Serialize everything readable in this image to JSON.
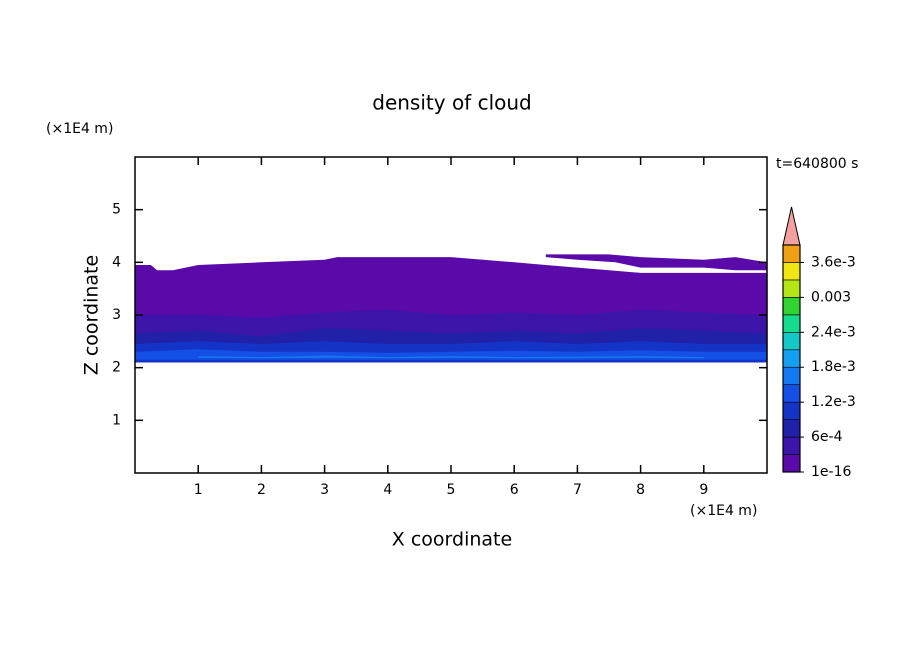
{
  "chart_data": {
    "type": "contour",
    "title": "density of cloud",
    "time_label": "t=640800 s",
    "xlabel": "X coordinate",
    "ylabel": "Z coordinate",
    "x_unit": "(×1E4 m)",
    "y_unit": "(×1E4 m)",
    "xlim": [
      0,
      10
    ],
    "ylim": [
      0,
      6
    ],
    "xticks": [
      1,
      2,
      3,
      4,
      5,
      6,
      7,
      8,
      9
    ],
    "yticks": [
      1,
      2,
      3,
      4,
      5
    ],
    "levels": [
      1e-16,
      0.0003,
      0.0006,
      0.0009,
      0.0012,
      0.0015,
      0.0018,
      0.0021,
      0.0024,
      0.0027,
      0.003,
      0.0033,
      0.0036,
      0.0039
    ],
    "level_colors": [
      "#5a0aa8",
      "#3c14aa",
      "#2020a8",
      "#1434c8",
      "#1450e6",
      "#1478f0",
      "#14a0f0",
      "#14c8c8",
      "#14dc8c",
      "#32d232",
      "#b4e614",
      "#f0e614",
      "#f0a014"
    ],
    "extend_color": "#f4a0a0",
    "colorbar_ticks": [
      {
        "value": 1e-16,
        "label": "1e-16"
      },
      {
        "value": 0.0006,
        "label": "6e-4"
      },
      {
        "value": 0.0012,
        "label": "1.2e-3"
      },
      {
        "value": 0.0018,
        "label": "1.8e-3"
      },
      {
        "value": 0.0024,
        "label": "2.4e-3"
      },
      0.003,
      {
        "value": 0.0036,
        "label": "3.6e-3"
      }
    ],
    "regions": [
      {
        "level": 0,
        "x": [
          0,
          0.25,
          0.35,
          0.6,
          1,
          2,
          3,
          3.2,
          4,
          5,
          6,
          6.5,
          7,
          7.5,
          8,
          9,
          10,
          10,
          0
        ],
        "z": [
          3.95,
          3.95,
          3.85,
          3.85,
          3.95,
          4.0,
          4.05,
          4.1,
          4.1,
          4.1,
          4.0,
          3.95,
          3.9,
          3.85,
          3.8,
          3.8,
          3.8,
          2.1,
          2.1
        ]
      },
      {
        "level": 0,
        "x": [
          6.5,
          7.5,
          8,
          9,
          9.5,
          10,
          10,
          9.5,
          9,
          8,
          7.6,
          7,
          6.5
        ],
        "z": [
          4.15,
          4.15,
          4.1,
          4.05,
          4.1,
          4.0,
          3.85,
          3.85,
          3.9,
          3.9,
          4.0,
          4.05,
          4.1
        ]
      },
      {
        "level": 1,
        "x": [
          0,
          1,
          2,
          3,
          4,
          5,
          6,
          7,
          8,
          9,
          10,
          10,
          0
        ],
        "z": [
          3.0,
          3.0,
          2.95,
          3.05,
          3.1,
          3.0,
          3.05,
          3.0,
          3.1,
          3.05,
          3.0,
          2.1,
          2.1
        ]
      },
      {
        "level": 2,
        "x": [
          0,
          1,
          2,
          3,
          4,
          5,
          6,
          7,
          8,
          9,
          10,
          10,
          0
        ],
        "z": [
          2.65,
          2.7,
          2.6,
          2.75,
          2.7,
          2.65,
          2.7,
          2.65,
          2.75,
          2.7,
          2.65,
          2.1,
          2.1
        ]
      },
      {
        "level": 3,
        "x": [
          0,
          1,
          2,
          3,
          4,
          5,
          6,
          7,
          8,
          9,
          10,
          10,
          0
        ],
        "z": [
          2.45,
          2.5,
          2.45,
          2.5,
          2.45,
          2.45,
          2.5,
          2.45,
          2.5,
          2.45,
          2.45,
          2.1,
          2.1
        ]
      },
      {
        "level": 4,
        "x": [
          0,
          1,
          2,
          3,
          4,
          5,
          6,
          7,
          8,
          9,
          10,
          10,
          0
        ],
        "z": [
          2.3,
          2.35,
          2.3,
          2.3,
          2.28,
          2.3,
          2.32,
          2.3,
          2.33,
          2.3,
          2.3,
          2.15,
          2.15
        ]
      },
      {
        "level": 5,
        "x": [
          1,
          2,
          3,
          4,
          5,
          6,
          7,
          8,
          9,
          9,
          8,
          7,
          6,
          5,
          4,
          3,
          2,
          1
        ],
        "z": [
          2.22,
          2.2,
          2.23,
          2.2,
          2.22,
          2.2,
          2.21,
          2.22,
          2.2,
          2.18,
          2.19,
          2.18,
          2.18,
          2.19,
          2.18,
          2.19,
          2.18,
          2.19
        ]
      }
    ]
  }
}
